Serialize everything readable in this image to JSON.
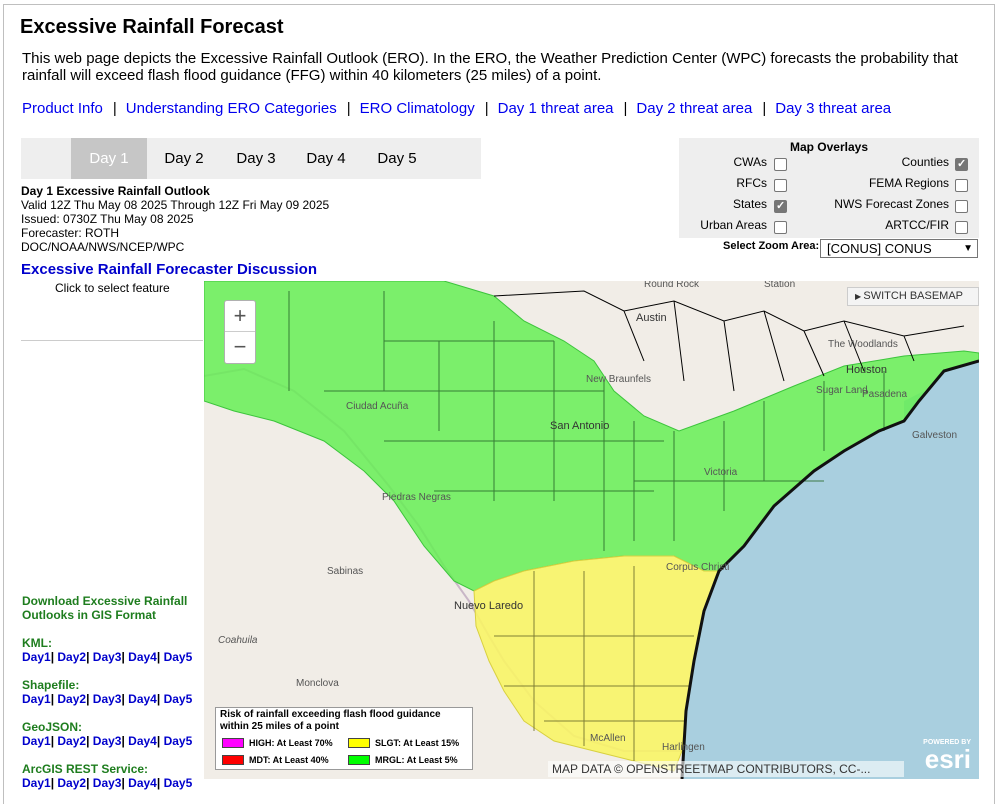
{
  "title": "Excessive Rainfall Forecast",
  "intro": "This web page depicts the Excessive Rainfall Outlook (ERO). In the ERO, the Weather Prediction Center (WPC) forecasts the probability that rainfall will exceed flash flood guidance (FFG) within 40 kilometers (25 miles) of a point.",
  "top_links": [
    "Product Info",
    "Understanding ERO Categories",
    "ERO Climatology",
    "Day 1 threat area",
    "Day 2 threat area",
    "Day 3 threat area"
  ],
  "link_separator": "|",
  "tabs": [
    "Day 1",
    "Day 2",
    "Day 3",
    "Day 4",
    "Day 5"
  ],
  "active_tab": "Day 1",
  "outlook": {
    "heading": "Day 1 Excessive Rainfall Outlook",
    "valid": "Valid 12Z Thu May 08 2025 Through 12Z Fri May 09 2025",
    "issued": "Issued: 0730Z Thu May 08 2025",
    "forecaster": "Forecaster: ROTH",
    "agency": "DOC/NOAA/NWS/NCEP/WPC"
  },
  "overlays": {
    "title": "Map Overlays",
    "items": [
      {
        "label": "CWAs",
        "checked": false
      },
      {
        "label": "Counties",
        "checked": true
      },
      {
        "label": "RFCs",
        "checked": false
      },
      {
        "label": "FEMA Regions",
        "checked": false
      },
      {
        "label": "States",
        "checked": true
      },
      {
        "label": "NWS Forecast Zones",
        "checked": false
      },
      {
        "label": "Urban Areas",
        "checked": false
      },
      {
        "label": "ARTCC/FIR",
        "checked": false
      }
    ],
    "zoom_label": "Select Zoom Area:",
    "zoom_value": "[CONUS] CONUS"
  },
  "discussion": {
    "title": "Excessive Rainfall Forecaster Discussion",
    "hint": "Click to select feature"
  },
  "gis": {
    "download_line1": "Download Excessive Rainfall",
    "download_line2": "Outlooks in GIS Format",
    "groups": [
      {
        "name": "KML:",
        "days": [
          "Day1",
          "Day2",
          "Day3",
          "Day4",
          "Day5"
        ]
      },
      {
        "name": "Shapefile:",
        "days": [
          "Day1",
          "Day2",
          "Day3",
          "Day4",
          "Day5"
        ]
      },
      {
        "name": "GeoJSON:",
        "days": [
          "Day1",
          "Day2",
          "Day3",
          "Day4",
          "Day5"
        ]
      },
      {
        "name": "ArcGIS REST Service:",
        "days": [
          "Day1",
          "Day2",
          "Day3",
          "Day4",
          "Day5"
        ]
      }
    ]
  },
  "map": {
    "zoom_in": "+",
    "zoom_out": "−",
    "basemap_button": "SWITCH BASEMAP",
    "labels": [
      "Round Rock",
      "Austin",
      "New Braunfels",
      "San Antonio",
      "Ciudad Acuña",
      "Piedras Negras",
      "Sabinas",
      "Nuevo Laredo",
      "Coahuila",
      "Monclova",
      "Victoria",
      "Corpus Christi",
      "McAllen",
      "Harlingen",
      "Houston",
      "Sugar Land",
      "Pasadena",
      "Galveston",
      "The Woodlands",
      "Station"
    ],
    "legend": {
      "title": "Risk of rainfall exceeding flash flood guidance within 25 miles of a point",
      "items": [
        {
          "label": "HIGH: At Least 70%",
          "color": "#ff00ff"
        },
        {
          "label": "SLGT: At Least 15%",
          "color": "#ffff00"
        },
        {
          "label": "MDT: At Least 40%",
          "color": "#ff0000"
        },
        {
          "label": "MRGL: At Least 5%",
          "color": "#00ff00"
        }
      ]
    },
    "attribution": "MAP DATA © OPENSTREETMAP CONTRIBUTORS, CC-...",
    "esri_powered": "POWERED BY",
    "esri_logo": "esri"
  },
  "colors": {
    "link": "#0000ee",
    "gis_heading": "#1e7d1e",
    "mrgl_fill": "#66ee55",
    "slgt_fill": "#f8f466",
    "water": "#a9cfdf",
    "land": "#f0ece6"
  }
}
